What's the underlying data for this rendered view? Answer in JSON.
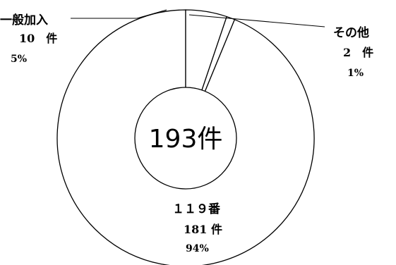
{
  "chart_data": {
    "type": "pie",
    "subtype": "donut",
    "center_label": "193件",
    "total": 193,
    "categories": [
      "１１９番",
      "一般加入",
      "その他"
    ],
    "values": [
      181,
      10,
      2
    ],
    "percent_labels": [
      "94%",
      "5%",
      "1%"
    ],
    "value_labels": [
      "181 件",
      "10　件",
      "2　件"
    ],
    "colors": {
      "fill": "#ffffff",
      "stroke": "#000000"
    }
  }
}
